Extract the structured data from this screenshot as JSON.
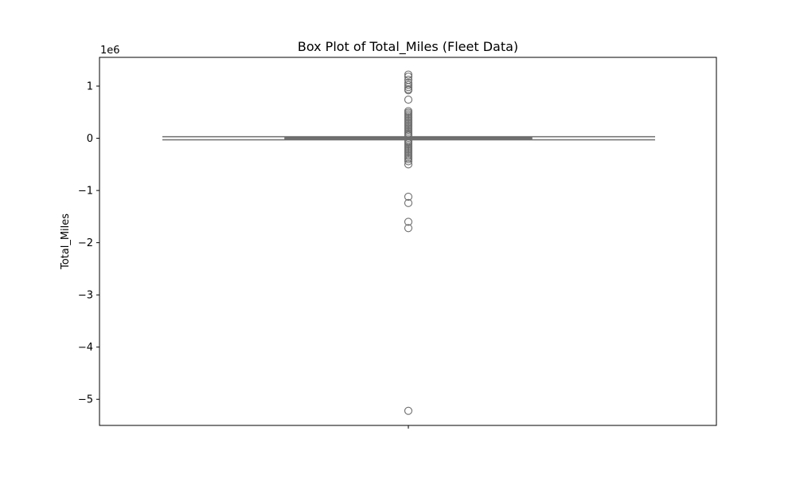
{
  "chart_data": {
    "type": "box",
    "title": "Box Plot of Total_Miles (Fleet Data)",
    "xlabel": "",
    "ylabel": "Total_Miles",
    "y_offset_label": "1e6",
    "y_scale_exponent": 6,
    "ylim": [
      -5.5,
      1.55
    ],
    "y_ticks": [
      1,
      0,
      -1,
      -2,
      -3,
      -4,
      -5
    ],
    "y_tick_labels": [
      "1",
      "0",
      "−1",
      "−2",
      "−3",
      "−4",
      "−5"
    ],
    "grid": false,
    "colors": {
      "box_stroke": "#6e6e6e",
      "box_fill": "#ffffff",
      "outlier_stroke": "#6e6e6e"
    },
    "box": {
      "q1": -0.02,
      "median": 0.0,
      "q3": 0.02,
      "whisker_low": -0.03,
      "whisker_high": 0.03
    },
    "outliers": [
      1.22,
      1.18,
      1.12,
      1.06,
      1.02,
      0.98,
      0.94,
      0.92,
      0.74,
      0.52,
      0.49,
      0.46,
      0.43,
      0.4,
      0.37,
      0.34,
      0.31,
      0.28,
      0.25,
      0.22,
      0.19,
      0.16,
      0.13,
      0.1,
      0.07,
      0.05,
      -0.05,
      -0.07,
      -0.1,
      -0.13,
      -0.16,
      -0.19,
      -0.22,
      -0.25,
      -0.28,
      -0.31,
      -0.34,
      -0.37,
      -0.4,
      -0.44,
      -0.5,
      -1.12,
      -1.24,
      -1.6,
      -1.72,
      -5.22
    ]
  }
}
